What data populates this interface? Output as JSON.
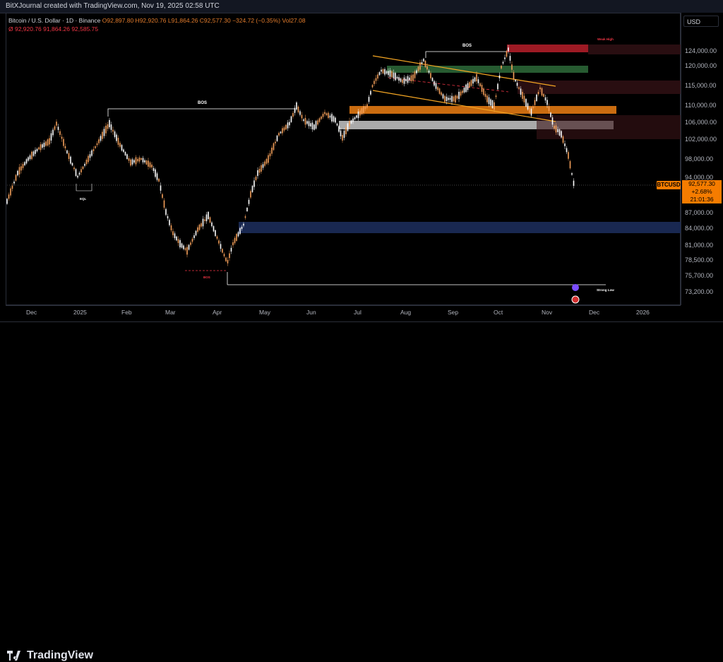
{
  "header": {
    "title": "BitXJournal created with TradingView.com, Nov 19, 2025 02:58 UTC"
  },
  "legend": {
    "symbol": "Bitcoin / U.S. Dollar · 1D · Binance",
    "ohlc": "O92,897.80 H92,920.76 L91,864.26 C92,577.30 −324.72 (−0.35%)",
    "volume": "Vol27.08",
    "indicator": "Ø  92,920.76  91,864.26  92,585.75"
  },
  "price_axis": {
    "currency": "USD",
    "ticks": [
      "124,000.00",
      "120,000.00",
      "115,000.00",
      "110,000.00",
      "106,000.00",
      "102,000.00",
      "98,000.00",
      "94,000.00",
      "87,000.00",
      "84,000.00",
      "81,000.00",
      "78,500.00",
      "75,700.00",
      "73,200.00"
    ]
  },
  "time_axis": {
    "ticks": [
      "Dec",
      "2025",
      "Feb",
      "Mar",
      "Apr",
      "May",
      "Jun",
      "Jul",
      "Aug",
      "Sep",
      "Oct",
      "Nov",
      "Dec",
      "2026"
    ]
  },
  "current": {
    "symbol": "BTCUSD",
    "price": "92,577.30",
    "change": "+2.68%",
    "countdown": "21:01:36"
  },
  "annotations": {
    "bos_left": "BOS",
    "bos_top": "BOS",
    "bos_low": "BOS",
    "eql": "EQL",
    "strong_low": "Strong Low",
    "weak_high": "Weak High"
  },
  "colors": {
    "up_candle": "#ffffff",
    "down_candle": "#f5a05a",
    "accent": "#f57c00",
    "zone_red": "#b81f2a",
    "zone_green": "#2e6b3a",
    "zone_orange": "#e07812",
    "zone_gray": "#c8c8c8",
    "zone_blue": "#1a2a55"
  },
  "footer": {
    "brand": "TradingView",
    "logo_icon": "tradingview-logo-icon"
  }
}
